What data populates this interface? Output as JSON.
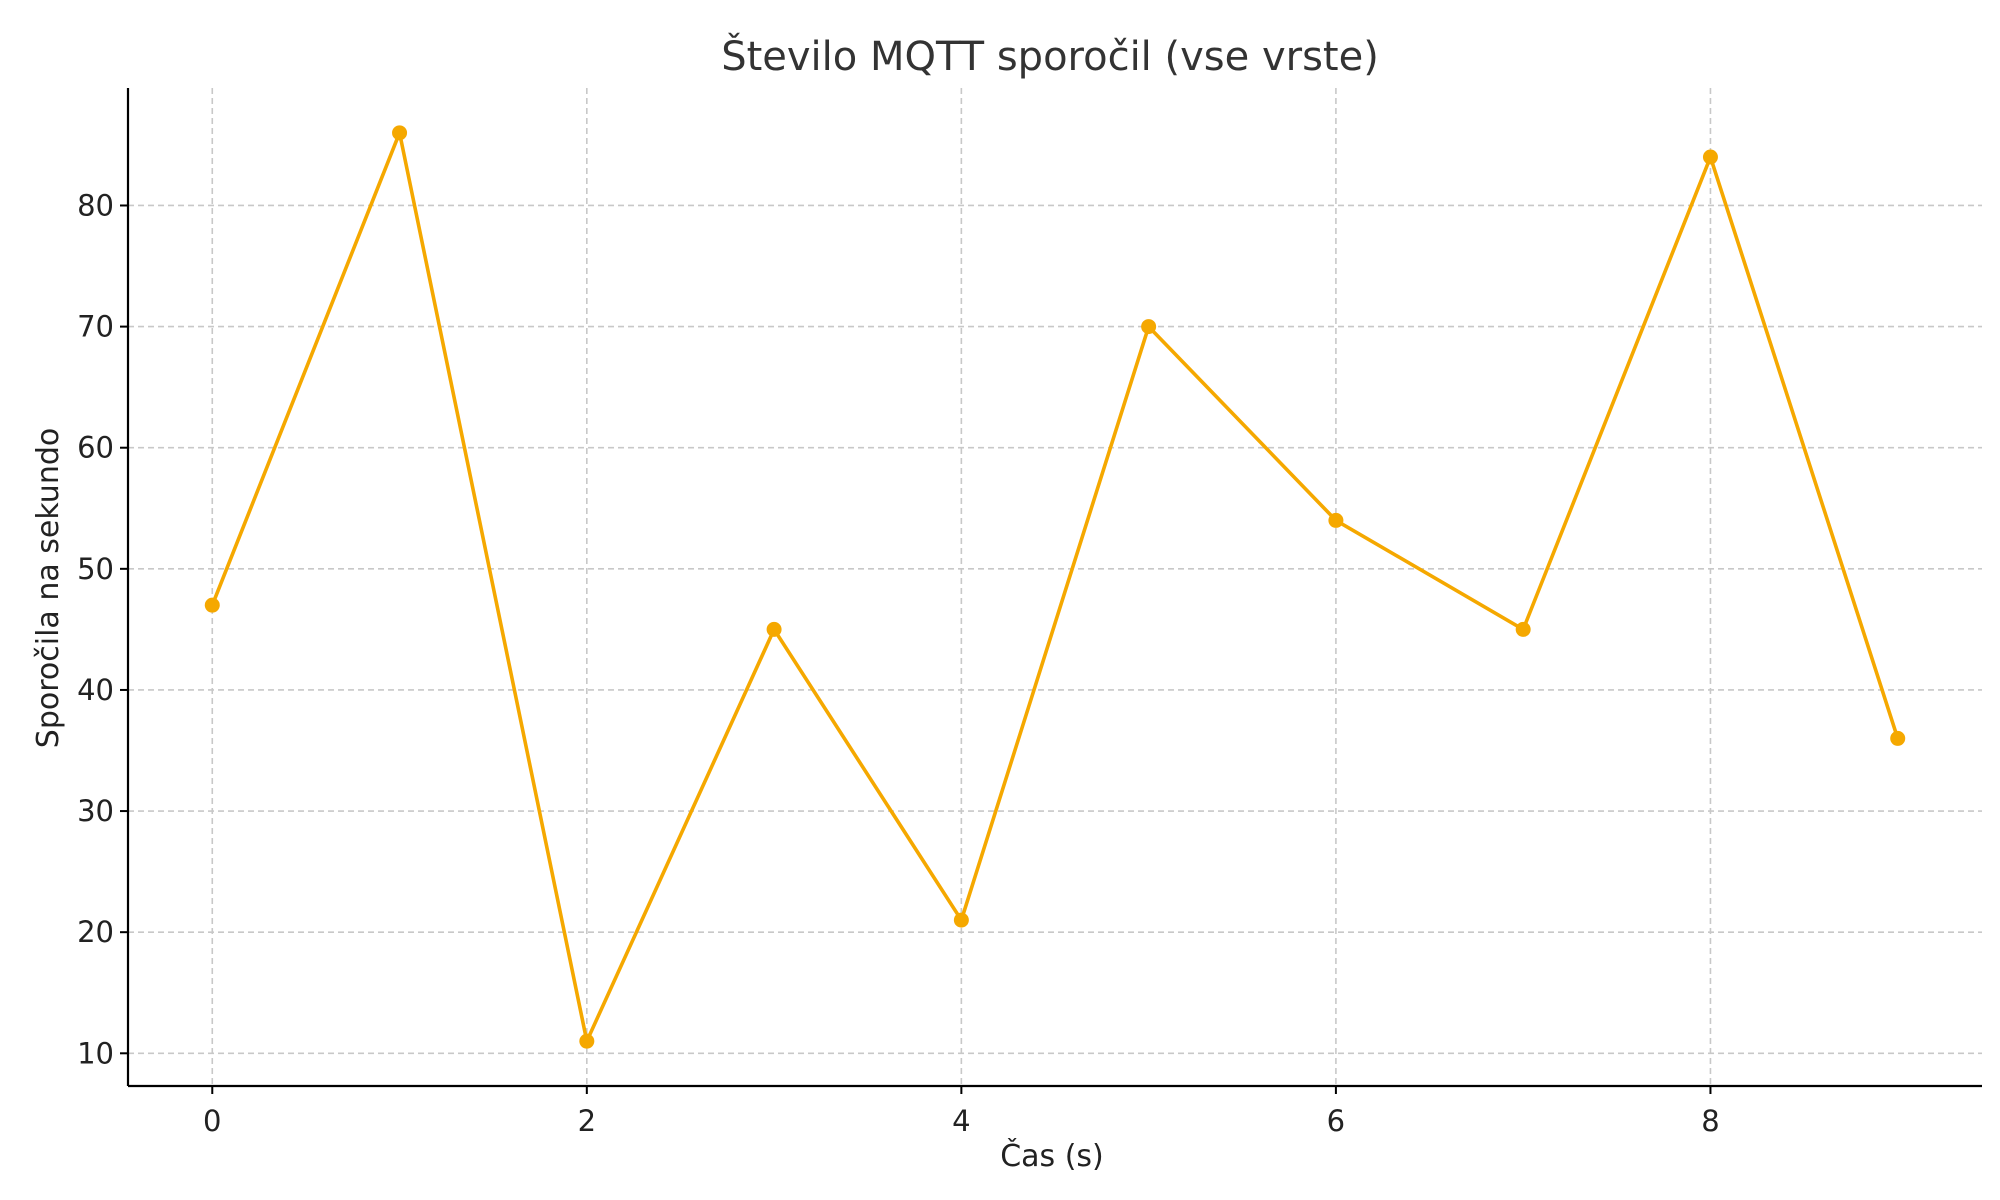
{
  "chart_data": {
    "type": "line",
    "title": "Število MQTT sporočil (vse vrste)",
    "xlabel": "Čas (s)",
    "ylabel": "Sporočila na sekundo",
    "x": [
      0,
      1,
      2,
      3,
      4,
      5,
      6,
      7,
      8,
      9
    ],
    "series": [
      {
        "values": [
          47,
          86,
          11,
          45,
          21,
          70,
          54,
          45,
          84,
          36
        ],
        "color": "#f5a800"
      }
    ],
    "xticks": [
      0,
      2,
      4,
      6,
      8
    ],
    "yticks": [
      10,
      20,
      30,
      40,
      50,
      60,
      70,
      80
    ],
    "xlim": [
      -0.45,
      9.45
    ],
    "ylim": [
      7.3,
      89.7
    ],
    "grid": true,
    "marker": "circle"
  }
}
